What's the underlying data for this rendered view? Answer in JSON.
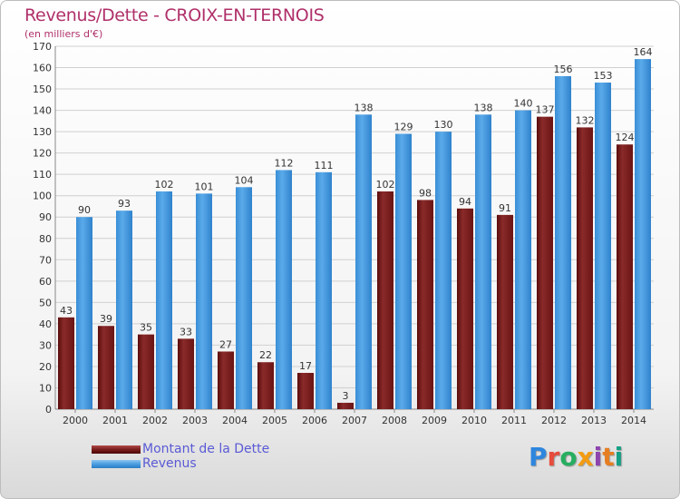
{
  "header": {
    "title": "Revenus/Dette - CROIX-EN-TERNOIS",
    "subtitle": "(en milliers d'€)"
  },
  "legend": {
    "debt_label": "Montant de la Dette",
    "revenue_label": "Revenus"
  },
  "logo": {
    "text": "Proxiti",
    "colors": [
      "#2e86de",
      "#e74c3c",
      "#27ae60",
      "#f39c12",
      "#8e44ad",
      "#e67e22",
      "#16a085"
    ]
  },
  "colors": {
    "debt": "#7a1c1c",
    "revenue": "#4a9de0",
    "grid": "#d0d0d0",
    "text": "#333333"
  },
  "chart_data": {
    "type": "bar",
    "title": "Revenus/Dette - CROIX-EN-TERNOIS",
    "subtitle": "(en milliers d'€)",
    "categories": [
      "2000",
      "2001",
      "2002",
      "2003",
      "2004",
      "2005",
      "2006",
      "2007",
      "2008",
      "2009",
      "2010",
      "2011",
      "2012",
      "2013",
      "2014"
    ],
    "series": [
      {
        "name": "Montant de la Dette",
        "values": [
          43,
          39,
          35,
          33,
          27,
          22,
          17,
          3,
          102,
          98,
          94,
          91,
          137,
          132,
          124
        ]
      },
      {
        "name": "Revenus",
        "values": [
          90,
          93,
          102,
          101,
          104,
          112,
          111,
          138,
          129,
          130,
          138,
          140,
          156,
          153,
          164
        ]
      }
    ],
    "ylim": [
      0,
      170
    ],
    "yticks": [
      0,
      10,
      20,
      30,
      40,
      50,
      60,
      70,
      80,
      90,
      100,
      110,
      120,
      130,
      140,
      150,
      160,
      170
    ],
    "grid": true,
    "legend_position": "bottom-left"
  }
}
